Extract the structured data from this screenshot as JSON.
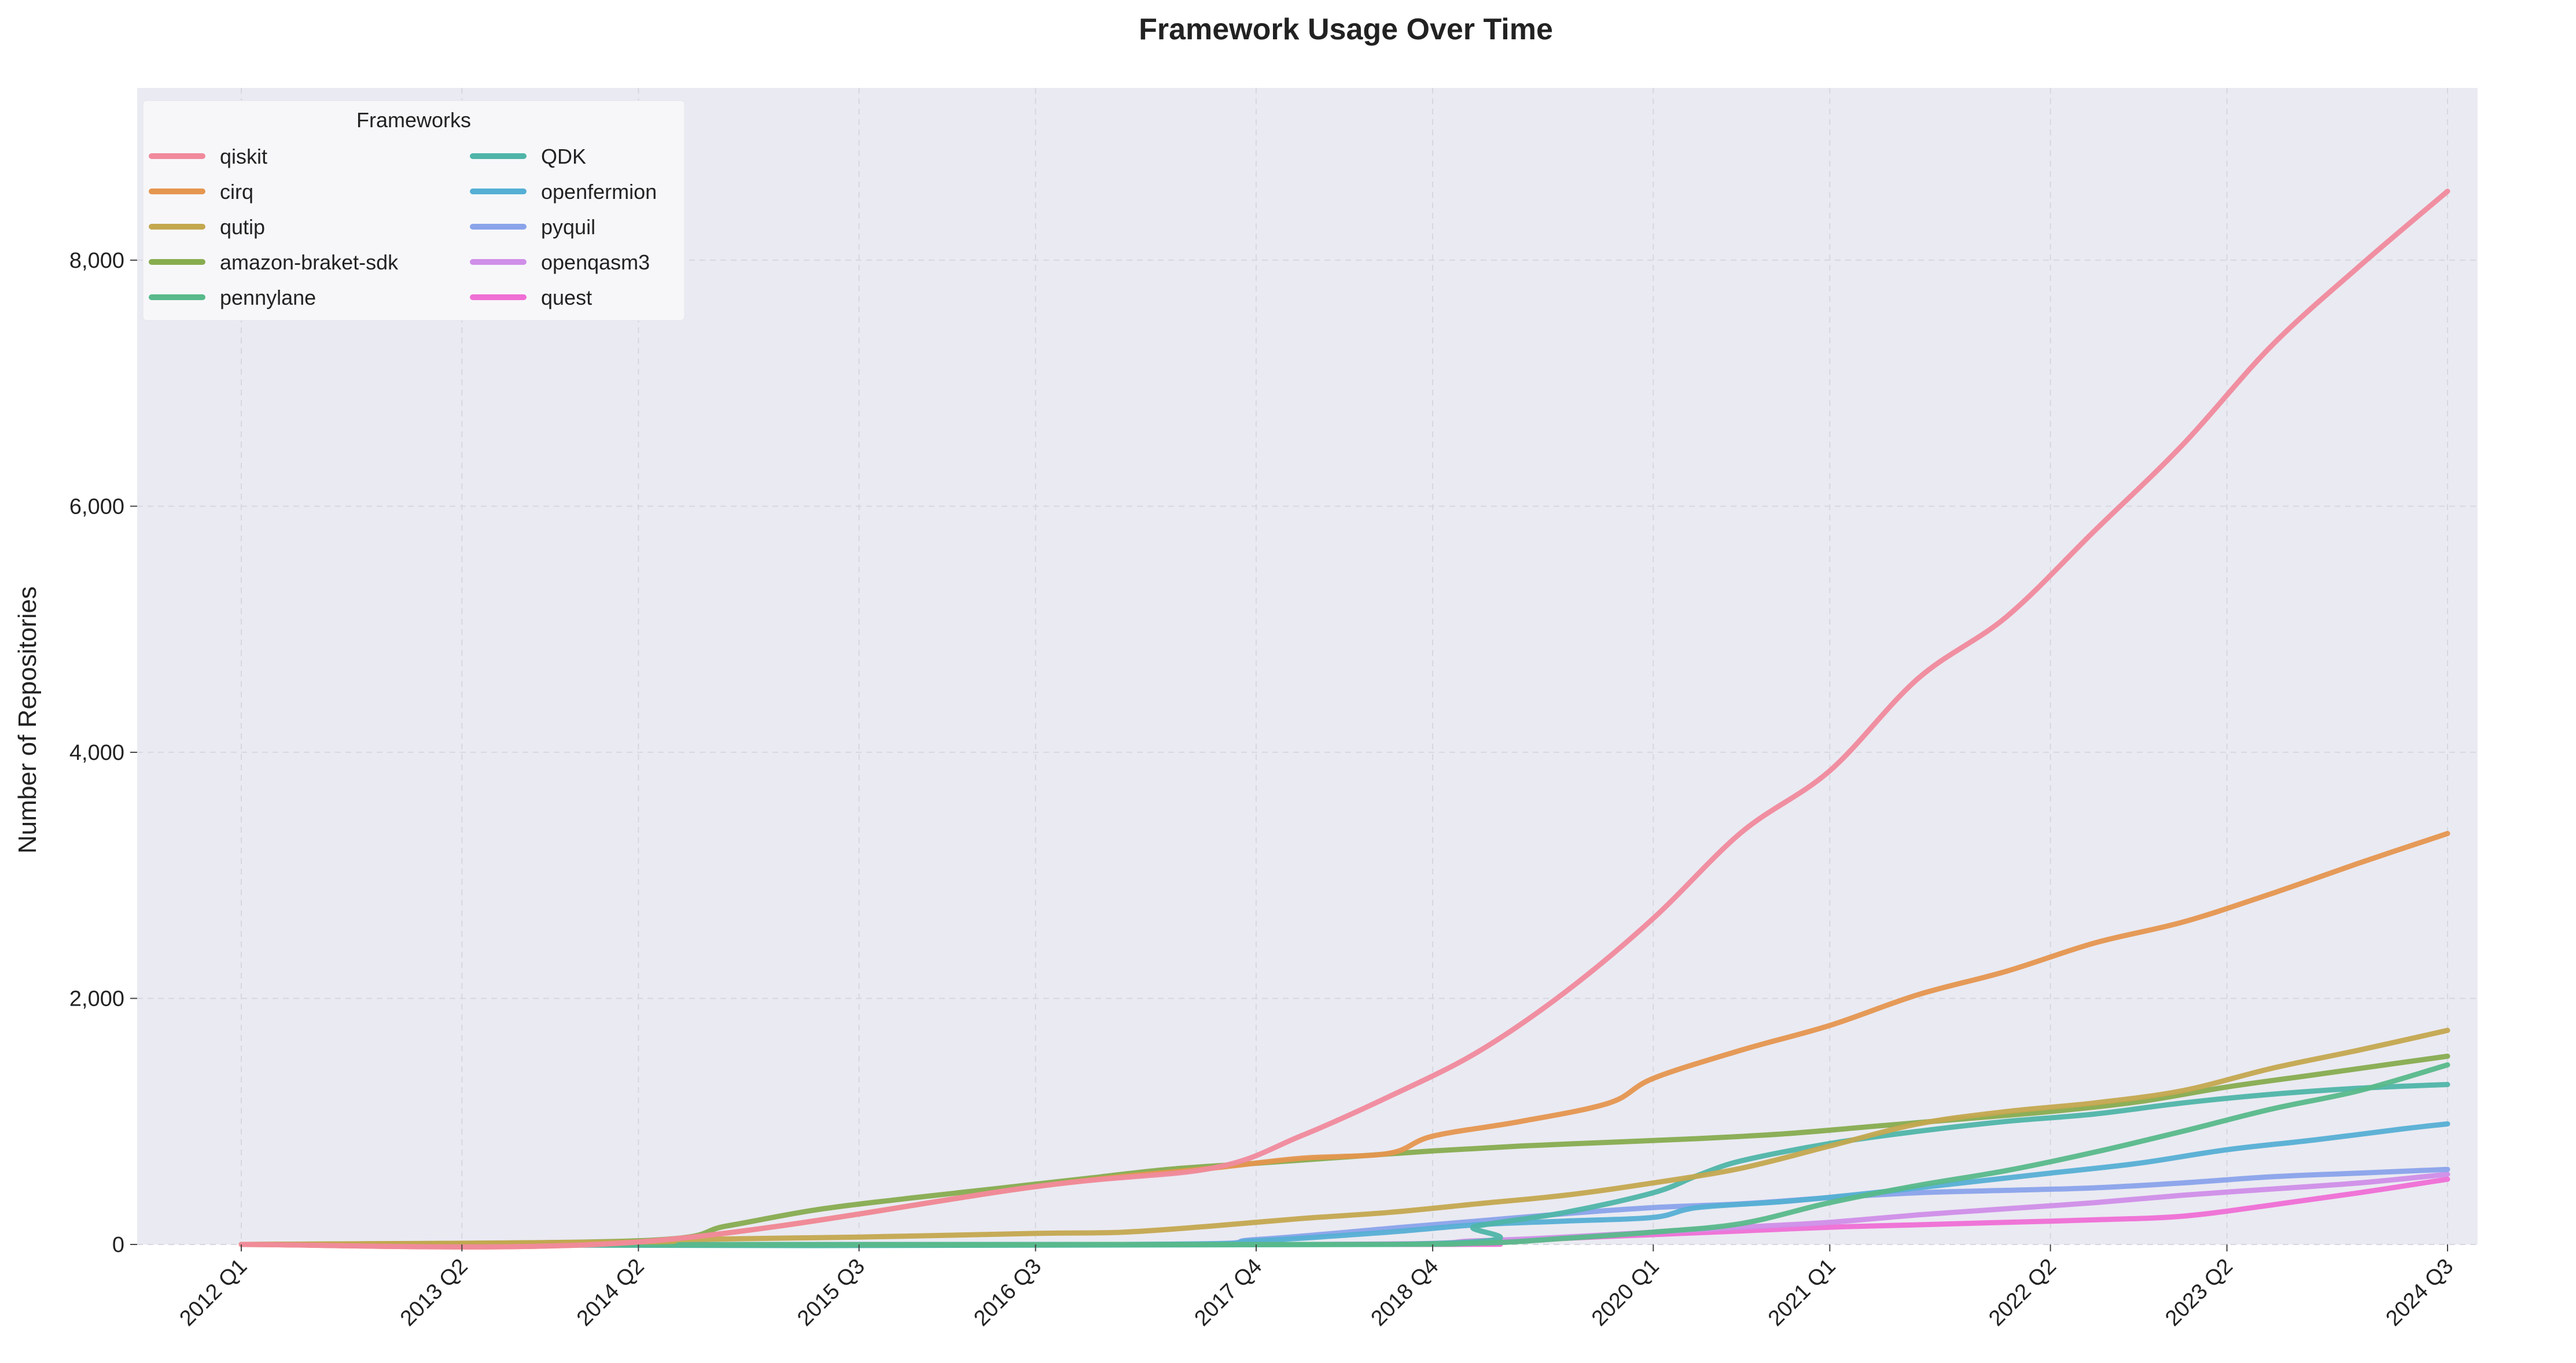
{
  "chart_data": {
    "type": "line",
    "title": "Framework Usage Over Time",
    "xlabel": "",
    "ylabel": "Number of Repositories",
    "legend_title": "Frameworks",
    "legend_position": "top-left",
    "grid": true,
    "ylim": [
      0,
      9400
    ],
    "y_ticks": [
      0,
      2000,
      4000,
      6000,
      8000
    ],
    "y_tick_labels": [
      "0",
      "2,000",
      "4,000",
      "6,000",
      "8,000"
    ],
    "x_ticks": [
      {
        "label": "2012 Q1",
        "q": 0
      },
      {
        "label": "2013 Q2",
        "q": 5
      },
      {
        "label": "2014 Q2",
        "q": 9
      },
      {
        "label": "2015 Q3",
        "q": 14
      },
      {
        "label": "2016 Q3",
        "q": 18
      },
      {
        "label": "2017 Q4",
        "q": 23
      },
      {
        "label": "2018 Q4",
        "q": 27
      },
      {
        "label": "2020 Q1",
        "q": 32
      },
      {
        "label": "2021 Q1",
        "q": 36
      },
      {
        "label": "2022 Q2",
        "q": 41
      },
      {
        "label": "2023 Q2",
        "q": 45
      },
      {
        "label": "2024 Q3",
        "q": 50
      }
    ],
    "series": [
      {
        "name": "qiskit",
        "color": "#f08a9c",
        "points": [
          [
            0,
            0
          ],
          [
            9,
            20
          ],
          [
            18,
            470
          ],
          [
            22,
            620
          ],
          [
            24,
            880
          ],
          [
            26,
            1200
          ],
          [
            28,
            1560
          ],
          [
            30,
            2050
          ],
          [
            32,
            2650
          ],
          [
            34,
            3350
          ],
          [
            36,
            3850
          ],
          [
            38,
            4600
          ],
          [
            40,
            5100
          ],
          [
            42,
            5800
          ],
          [
            44,
            6500
          ],
          [
            46,
            7300
          ],
          [
            48,
            7950
          ],
          [
            50,
            8560
          ]
        ]
      },
      {
        "name": "cirq",
        "color": "#e5964f",
        "points": [
          [
            0,
            0
          ],
          [
            9,
            20
          ],
          [
            18,
            470
          ],
          [
            22,
            620
          ],
          [
            24,
            700
          ],
          [
            26,
            740
          ],
          [
            27,
            880
          ],
          [
            29,
            1000
          ],
          [
            31,
            1150
          ],
          [
            32,
            1350
          ],
          [
            34,
            1580
          ],
          [
            36,
            1780
          ],
          [
            38,
            2030
          ],
          [
            40,
            2220
          ],
          [
            42,
            2450
          ],
          [
            44,
            2620
          ],
          [
            46,
            2850
          ],
          [
            48,
            3100
          ],
          [
            50,
            3340
          ]
        ]
      },
      {
        "name": "qutip",
        "color": "#c4a84f",
        "points": [
          [
            0,
            0
          ],
          [
            9,
            20
          ],
          [
            10,
            40
          ],
          [
            14,
            60
          ],
          [
            18,
            90
          ],
          [
            20,
            100
          ],
          [
            22,
            150
          ],
          [
            24,
            210
          ],
          [
            26,
            260
          ],
          [
            28,
            330
          ],
          [
            30,
            400
          ],
          [
            32,
            500
          ],
          [
            34,
            620
          ],
          [
            36,
            800
          ],
          [
            38,
            980
          ],
          [
            40,
            1080
          ],
          [
            42,
            1150
          ],
          [
            44,
            1250
          ],
          [
            46,
            1430
          ],
          [
            48,
            1580
          ],
          [
            50,
            1740
          ]
        ]
      },
      {
        "name": "amazon-braket-sdk",
        "color": "#87ac4f",
        "points": [
          [
            0,
            0
          ],
          [
            9,
            30
          ],
          [
            11,
            150
          ],
          [
            13,
            280
          ],
          [
            15,
            370
          ],
          [
            17,
            450
          ],
          [
            19,
            530
          ],
          [
            21,
            610
          ],
          [
            23,
            660
          ],
          [
            25,
            710
          ],
          [
            27,
            760
          ],
          [
            29,
            800
          ],
          [
            31,
            830
          ],
          [
            33,
            860
          ],
          [
            35,
            900
          ],
          [
            37,
            960
          ],
          [
            39,
            1020
          ],
          [
            41,
            1080
          ],
          [
            43,
            1160
          ],
          [
            45,
            1280
          ],
          [
            47,
            1380
          ],
          [
            49,
            1480
          ],
          [
            50,
            1530
          ]
        ]
      },
      {
        "name": "pennylane",
        "color": "#58b98a",
        "points": [
          [
            0,
            0
          ],
          [
            24,
            0
          ],
          [
            28,
            10
          ],
          [
            30,
            50
          ],
          [
            32,
            100
          ],
          [
            34,
            170
          ],
          [
            36,
            340
          ],
          [
            38,
            480
          ],
          [
            40,
            600
          ],
          [
            42,
            750
          ],
          [
            44,
            920
          ],
          [
            46,
            1100
          ],
          [
            48,
            1250
          ],
          [
            50,
            1460
          ]
        ]
      },
      {
        "name": "QDK",
        "color": "#4fb5a8",
        "points": [
          [
            0,
            0
          ],
          [
            26,
            0
          ],
          [
            28,
            150
          ],
          [
            30,
            260
          ],
          [
            32,
            420
          ],
          [
            33,
            560
          ],
          [
            34,
            680
          ],
          [
            36,
            820
          ],
          [
            38,
            920
          ],
          [
            40,
            1000
          ],
          [
            42,
            1060
          ],
          [
            44,
            1150
          ],
          [
            46,
            1220
          ],
          [
            48,
            1270
          ],
          [
            50,
            1300
          ]
        ]
      },
      {
        "name": "openfermion",
        "color": "#56afd4",
        "points": [
          [
            0,
            0
          ],
          [
            20,
            0
          ],
          [
            23,
            30
          ],
          [
            26,
            100
          ],
          [
            28,
            160
          ],
          [
            30,
            190
          ],
          [
            32,
            220
          ],
          [
            33,
            300
          ],
          [
            35,
            350
          ],
          [
            37,
            420
          ],
          [
            39,
            500
          ],
          [
            41,
            580
          ],
          [
            43,
            660
          ],
          [
            45,
            770
          ],
          [
            47,
            850
          ],
          [
            49,
            940
          ],
          [
            50,
            980
          ]
        ]
      },
      {
        "name": "pyquil",
        "color": "#8aa3ea",
        "points": [
          [
            0,
            0
          ],
          [
            20,
            0
          ],
          [
            23,
            40
          ],
          [
            26,
            130
          ],
          [
            28,
            190
          ],
          [
            30,
            250
          ],
          [
            32,
            300
          ],
          [
            34,
            330
          ],
          [
            36,
            380
          ],
          [
            38,
            420
          ],
          [
            40,
            440
          ],
          [
            42,
            460
          ],
          [
            44,
            500
          ],
          [
            46,
            550
          ],
          [
            48,
            580
          ],
          [
            50,
            610
          ]
        ]
      },
      {
        "name": "openqasm3",
        "color": "#d08ee8",
        "points": [
          [
            0,
            0
          ],
          [
            24,
            0
          ],
          [
            28,
            30
          ],
          [
            30,
            60
          ],
          [
            32,
            100
          ],
          [
            34,
            140
          ],
          [
            36,
            180
          ],
          [
            38,
            240
          ],
          [
            40,
            290
          ],
          [
            42,
            340
          ],
          [
            44,
            400
          ],
          [
            46,
            450
          ],
          [
            48,
            500
          ],
          [
            50,
            570
          ]
        ]
      },
      {
        "name": "quest",
        "color": "#ef6fd5",
        "points": [
          [
            0,
            0
          ],
          [
            26,
            0
          ],
          [
            28,
            10
          ],
          [
            30,
            50
          ],
          [
            32,
            80
          ],
          [
            34,
            110
          ],
          [
            36,
            140
          ],
          [
            38,
            160
          ],
          [
            40,
            180
          ],
          [
            42,
            200
          ],
          [
            44,
            230
          ],
          [
            46,
            320
          ],
          [
            48,
            420
          ],
          [
            50,
            530
          ]
        ]
      }
    ]
  }
}
